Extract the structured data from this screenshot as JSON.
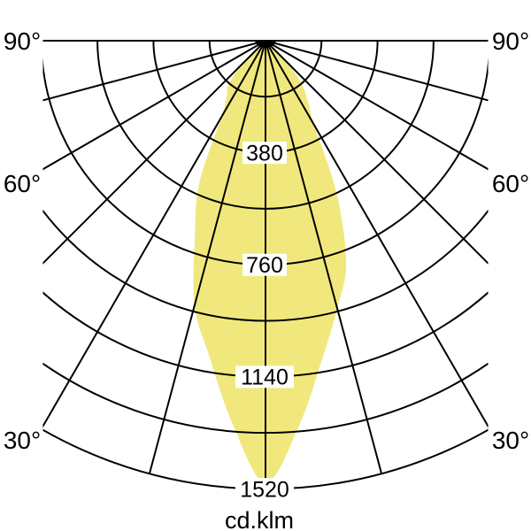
{
  "unit_label": "cd.klm",
  "colors": {
    "background": "#ffffff",
    "beam_fill": "#f1e87d",
    "grid_line": "#000000",
    "text": "#000000"
  },
  "chart_data": {
    "type": "polar",
    "title": "",
    "unit": "cd.klm",
    "legend": "none",
    "grid": "on",
    "radial_grid_step_deg": 15,
    "angle_range_deg": [
      -90,
      90
    ],
    "ring_values": [
      190,
      380,
      570,
      760,
      950,
      1140,
      1330,
      1520
    ],
    "ring_label_values": [
      "380",
      "760",
      "1140",
      "1520"
    ],
    "angle_tick_labels": {
      "left": [
        "90°",
        "60°",
        "30°"
      ],
      "right": [
        "90°",
        "60°",
        "30°"
      ]
    },
    "distribution": {
      "comment_units": "luminous intensity cd/klm vs angle from nadir",
      "angles_deg": [
        0,
        5,
        10,
        15,
        20,
        25,
        30,
        35,
        40,
        45,
        50
      ],
      "intensity_left": [
        1500,
        1300,
        1090,
        930,
        700,
        530,
        300,
        230,
        195,
        110,
        0
      ],
      "intensity_right": [
        1500,
        1310,
        1100,
        940,
        800,
        570,
        330,
        250,
        190,
        100,
        0
      ]
    }
  }
}
